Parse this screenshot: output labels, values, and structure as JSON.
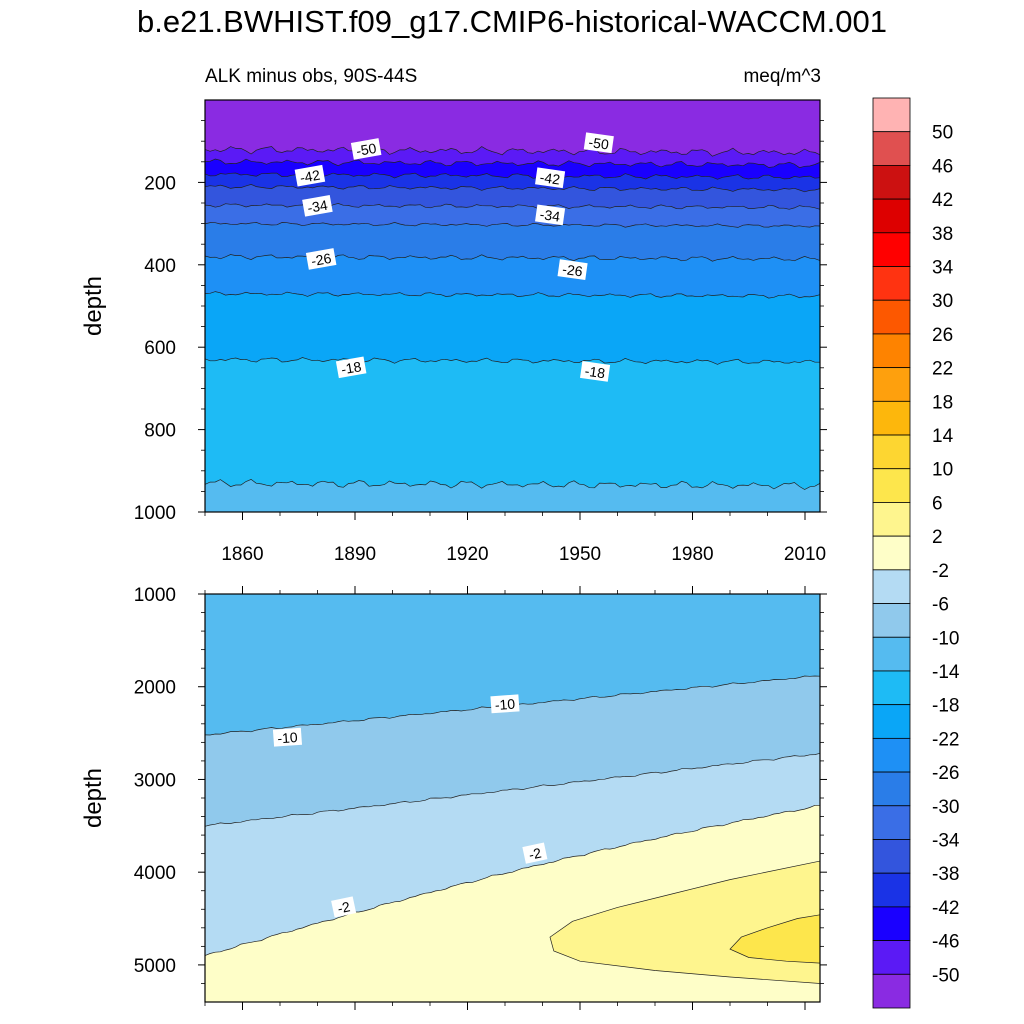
{
  "title": "b.e21.BWHIST.f09_g17.CMIP6-historical-WACCM.001",
  "subtitle_left": "ALK minus obs, 90S-44S",
  "subtitle_right": "meq/m^3",
  "colors": {
    "levels": [
      "#8a2be2",
      "#5b1af5",
      "#1a00ff",
      "#1a33e6",
      "#3355dd",
      "#3a6ee6",
      "#2a7de8",
      "#1e90f5",
      "#0aa6f7",
      "#1ebbf5",
      "#55bbf0",
      "#90c9ec",
      "#b4dbf3",
      "#fefec8",
      "#fef58e",
      "#fde64c",
      "#fdd631",
      "#fdb70c",
      "#fea00d",
      "#fe8300",
      "#fd5800",
      "#ff3311",
      "#ff0000",
      "#dd0000",
      "#cc1111",
      "#e05050",
      "#ffb3b3"
    ]
  },
  "chart_data": [
    {
      "type": "contour",
      "name": "upper",
      "x_ticks": [
        1860,
        1890,
        1920,
        1950,
        1980,
        2010
      ],
      "xlim": [
        1850,
        2014
      ],
      "y_ticks": [
        200,
        400,
        600,
        800,
        1000
      ],
      "ylim": [
        0,
        1000
      ],
      "ylabel": "depth",
      "y_inverted": true,
      "contours": [
        {
          "level": -50,
          "depth": 120,
          "fill_index": 0
        },
        {
          "level": -46,
          "depth": 150,
          "fill_index": 1
        },
        {
          "level": -42,
          "depth": 180,
          "fill_index": 2
        },
        {
          "level": -38,
          "depth": 210,
          "fill_index": 3
        },
        {
          "level": -34,
          "depth": 255,
          "fill_index": 4
        },
        {
          "level": -30,
          "depth": 300,
          "fill_index": 5
        },
        {
          "level": -26,
          "depth": 380,
          "fill_index": 6
        },
        {
          "level": -22,
          "depth": 470,
          "fill_index": 7
        },
        {
          "level": -18,
          "depth": 630,
          "fill_index": 8
        },
        {
          "level": -14,
          "depth": 930,
          "fill_index": 9
        }
      ],
      "contour_labels": [
        {
          "text": "-50",
          "x": 1893,
          "y": 120
        },
        {
          "text": "-50",
          "x": 1955,
          "y": 105
        },
        {
          "text": "-42",
          "x": 1878,
          "y": 185
        },
        {
          "text": "-42",
          "x": 1942,
          "y": 190
        },
        {
          "text": "-34",
          "x": 1880,
          "y": 258
        },
        {
          "text": "-34",
          "x": 1942,
          "y": 280
        },
        {
          "text": "-26",
          "x": 1881,
          "y": 387
        },
        {
          "text": "-26",
          "x": 1948,
          "y": 413
        },
        {
          "text": "-18",
          "x": 1889,
          "y": 650
        },
        {
          "text": "-18",
          "x": 1954,
          "y": 660
        }
      ]
    },
    {
      "type": "contour",
      "name": "lower",
      "x_ticks": [
        1860,
        1890,
        1920,
        1950,
        1980,
        2010
      ],
      "xlim": [
        1850,
        2014
      ],
      "y_ticks": [
        1000,
        2000,
        3000,
        4000,
        5000
      ],
      "ylim": [
        1000,
        5400
      ],
      "ylabel": "depth",
      "y_inverted": true,
      "contours": [
        {
          "level": -14,
          "start_depth": 1000,
          "end_depth": 1000,
          "fill_index": 10
        },
        {
          "level": -10,
          "start_depth": 2520,
          "end_depth": 1880,
          "fill_index": 11
        },
        {
          "level": -6,
          "start_depth": 3500,
          "end_depth": 2720,
          "fill_index": 12
        },
        {
          "level": -2,
          "start_depth": 4900,
          "end_depth": 3320,
          "fill_index": 13
        }
      ],
      "contour_labels": [
        {
          "text": "-10",
          "x": 1872,
          "y": 2550
        },
        {
          "text": "-10",
          "x": 1930,
          "y": 2190
        },
        {
          "text": "-2",
          "x": 1887,
          "y": 4380
        },
        {
          "text": "-2",
          "x": 1938,
          "y": 3800
        }
      ]
    }
  ],
  "colorbar": {
    "labels": [
      "50",
      "46",
      "42",
      "38",
      "34",
      "30",
      "26",
      "22",
      "18",
      "14",
      "10",
      "6",
      "2",
      "-2",
      "-6",
      "-10",
      "-14",
      "-18",
      "-22",
      "-26",
      "-30",
      "-34",
      "-38",
      "-42",
      "-46",
      "-50"
    ]
  }
}
